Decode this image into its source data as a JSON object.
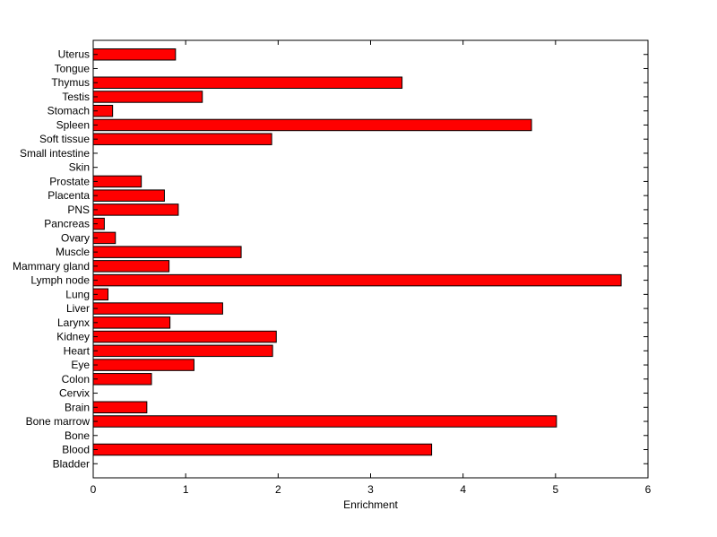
{
  "chart_data": {
    "type": "bar",
    "orientation": "horizontal",
    "categories": [
      "Bladder",
      "Blood",
      "Bone",
      "Bone marrow",
      "Brain",
      "Cervix",
      "Colon",
      "Eye",
      "Heart",
      "Kidney",
      "Larynx",
      "Liver",
      "Lung",
      "Lymph node",
      "Mammary gland",
      "Muscle",
      "Ovary",
      "Pancreas",
      "PNS",
      "Placenta",
      "Prostate",
      "Skin",
      "Small intestine",
      "Soft tissue",
      "Spleen",
      "Stomach",
      "Testis",
      "Thymus",
      "Tongue",
      "Uterus"
    ],
    "values": [
      0,
      3.66,
      0,
      5.01,
      0.58,
      0,
      0.63,
      1.09,
      1.94,
      1.98,
      0.83,
      1.4,
      0.16,
      5.71,
      0.82,
      1.6,
      0.24,
      0.12,
      0.92,
      0.77,
      0.52,
      0,
      0,
      1.93,
      4.74,
      0.21,
      1.18,
      3.34,
      0,
      0.89
    ],
    "title": "",
    "xlabel": "Enrichment",
    "ylabel": "",
    "xlim": [
      0,
      6
    ],
    "xticks": [
      "0",
      "1",
      "2",
      "3",
      "4",
      "5",
      "6"
    ],
    "bar_color": "#ff0000",
    "grid": false
  }
}
